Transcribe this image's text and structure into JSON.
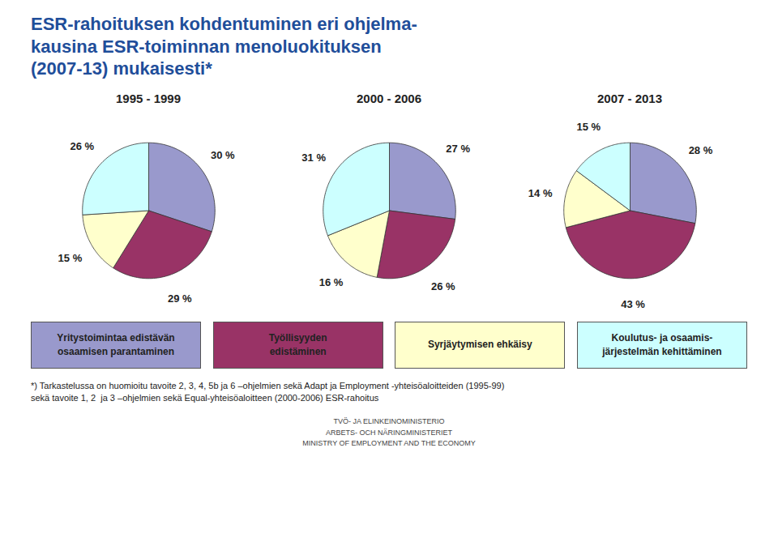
{
  "chart_data": {
    "type": "pie",
    "title": "ESR-rahoituksen kohdentuminen eri ohjelma-\nkausina ESR-toiminnan menoluokituksen\n(2007-13) mukaisesti*",
    "categories": [
      "Yritystoimintaa edistävän\nosaamisen parantaminen",
      "Työllisyyden\nedistäminen",
      "Syrjäytymisen ehkäisy",
      "Koulutus- ja osaamis-\njärjestelmän kehittäminen"
    ],
    "colors": [
      "#9999CC",
      "#993366",
      "#FFFFCC",
      "#CCFFFF"
    ],
    "series": [
      {
        "name": "1995 - 1999",
        "values": [
          30,
          29,
          15,
          26
        ],
        "value_labels": [
          "30 %",
          "29 %",
          "15 %",
          "26 %"
        ]
      },
      {
        "name": "2000 - 2006",
        "values": [
          27,
          26,
          16,
          31
        ],
        "value_labels": [
          "27 %",
          "26 %",
          "16 %",
          "31 %"
        ]
      },
      {
        "name": "2007 - 2013",
        "values": [
          28,
          43,
          14,
          15
        ],
        "value_labels": [
          "28 %",
          "43 %",
          "14 %",
          "15 %"
        ]
      }
    ],
    "data_labels": true,
    "legend": "bottom",
    "annotations": [
      "*) Tarkastelussa on huomioitu tavoite 2, 3, 4, 5b ja 6 –ohjelmien sekä Adapt ja Employment -yhteisöaloitteiden (1995-99)",
      "sekä tavoite 1, 2  ja 3 –ohjelmien sekä Equal-yhteisöaloitteen (2000-2006) ESR-rahoitus",
      "TVÖ- JA ELINKEINOMINISTERIO\nARBETS- OCH NÄRINGMINISTERIET\nMINISTRY OF EMPLOYMENT AND THE ECONOMY"
    ]
  }
}
